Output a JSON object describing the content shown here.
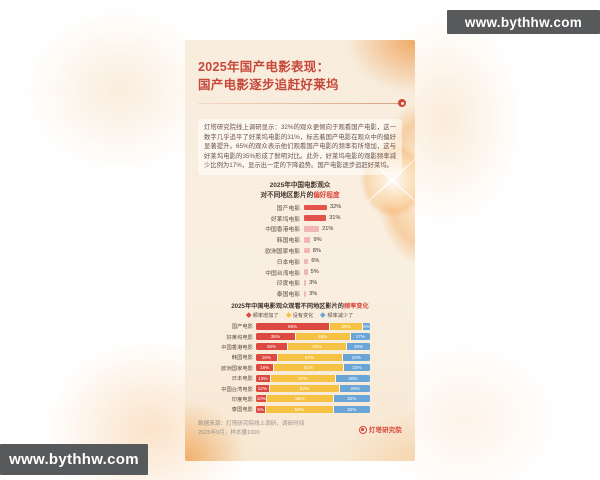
{
  "watermarks": {
    "text": "www.bythhw.com",
    "bg_color": "#58595b"
  },
  "poster": {
    "title_line1": "2025年国产电影表现：",
    "title_line2": "国产电影逐步追赶好莱坞",
    "intro": "灯塔研究院线上调研显示：32%的观众更倾向于观看国产电影，这一数字几乎追平了好莱坞电影的31%，标志着国产电影在观众中的偏好显著提升。65%的观众表示他们观看国产电影的频率有所增加，这与好莱坞电影的35%形成了鲜明对比。此外，好莱坞电影的观影频率减少比例为17%，显示出一定的下降趋势。国产电影逐步追赶好莱坞。",
    "footer": {
      "source_line1": "数据来源：灯塔研究院线上调研，调研时间",
      "source_line2": "2025年9月，样本量1000",
      "brand": "灯塔研究院"
    }
  },
  "colors": {
    "accent_red": "#d9453a",
    "title_red": "#c5483b",
    "bar_red": "#e2534a",
    "bar_pink": "#f0b7b2",
    "stack_red": "#dd4840",
    "stack_yellow": "#f6c243",
    "stack_blue": "#6aa5d8",
    "card_cream": "#f8ecdc",
    "watermark_gray": "#58595b"
  },
  "chart_data": [
    {
      "type": "bar",
      "title_line1": "2025年中国电影观众",
      "title_line2_prefix": "对不同地区影片的",
      "title_line2_highlight": "偏好程度",
      "categories": [
        "国产电影",
        "好莱坞电影",
        "中国香港电影",
        "韩国电影",
        "欧洲国家电影",
        "日本电影",
        "中国台湾电影",
        "印度电影",
        "泰国电影"
      ],
      "values": [
        32,
        31,
        21,
        9,
        8,
        6,
        5,
        3,
        3
      ],
      "unit": "%",
      "bar_color_primary": "#e2534a",
      "bar_color_secondary": "#f0b7b2",
      "xlim": [
        0,
        45
      ],
      "grid": false,
      "value_labels": true
    },
    {
      "type": "stacked-bar",
      "title_prefix": "2025年中国电影观众观看不同地区影片的",
      "title_highlight": "频率变化",
      "unit": "%",
      "legend_position": "top",
      "categories": [
        "国产电影",
        "好莱坞电影",
        "中国香港电影",
        "韩国电影",
        "欧洲国家电影",
        "日本电影",
        "中国台湾电影",
        "印度电影",
        "泰国电影"
      ],
      "series": [
        {
          "name": "频率增加了",
          "color": "#dd4840",
          "values": [
            65,
            35,
            28,
            19,
            16,
            13,
            12,
            10,
            9
          ]
        },
        {
          "name": "没有变化",
          "color": "#f6c243",
          "values": [
            29,
            48,
            52,
            57,
            61,
            57,
            62,
            58,
            59
          ]
        },
        {
          "name": "频率减少了",
          "color": "#6aa5d8",
          "values": [
            6,
            17,
            20,
            24,
            23,
            30,
            26,
            32,
            32
          ]
        }
      ]
    }
  ]
}
